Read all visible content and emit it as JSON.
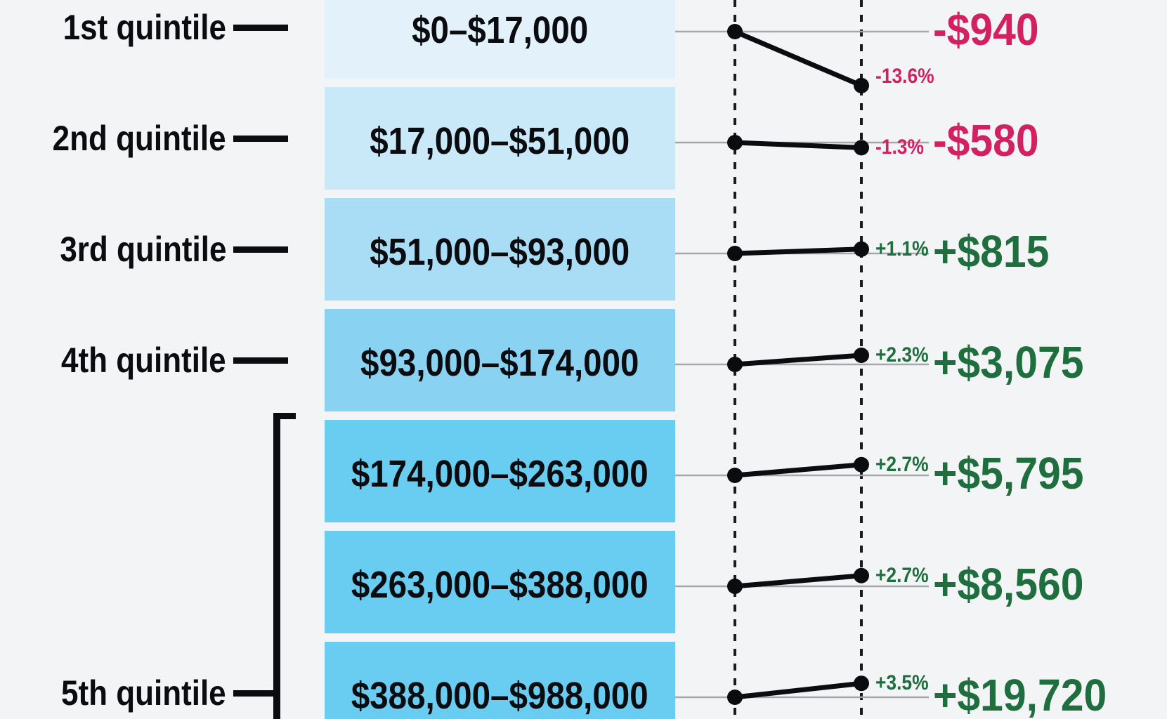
{
  "chart_data": {
    "type": "slope",
    "description_visible_text_only": true,
    "rows": [
      {
        "quintile": "1st quintile",
        "income_range": "$0–$17,000",
        "pct_change": -13.6,
        "pct_change_label": "-13.6%",
        "dollar_change": -940,
        "dollar_change_label": "-$940",
        "sentiment": "negative",
        "box_color": "#e3f1fb"
      },
      {
        "quintile": "2nd quintile",
        "income_range": "$17,000–$51,000",
        "pct_change": -1.3,
        "pct_change_label": "-1.3%",
        "dollar_change": -580,
        "dollar_change_label": "-$580",
        "sentiment": "negative",
        "box_color": "#c9e8f8"
      },
      {
        "quintile": "3rd quintile",
        "income_range": "$51,000–$93,000",
        "pct_change": 1.1,
        "pct_change_label": "+1.1%",
        "dollar_change": 815,
        "dollar_change_label": "+$815",
        "sentiment": "positive",
        "box_color": "#a8ddf5"
      },
      {
        "quintile": "4th quintile",
        "income_range": "$93,000–$174,000",
        "pct_change": 2.3,
        "pct_change_label": "+2.3%",
        "dollar_change": 3075,
        "dollar_change_label": "+$3,075",
        "sentiment": "positive",
        "box_color": "#8ad2f2"
      },
      {
        "quintile": "",
        "income_range": "$174,000–$263,000",
        "pct_change": 2.7,
        "pct_change_label": "+2.7%",
        "dollar_change": 5795,
        "dollar_change_label": "+$5,795",
        "sentiment": "positive",
        "box_color": "#68cdf1"
      },
      {
        "quintile": "",
        "income_range": "$263,000–$388,000",
        "pct_change": 2.7,
        "pct_change_label": "+2.7%",
        "dollar_change": 8560,
        "dollar_change_label": "+$8,560",
        "sentiment": "positive",
        "box_color": "#68cdf1"
      },
      {
        "quintile": "5th quintile",
        "income_range": "$388,000–$988,000",
        "pct_change": 3.5,
        "pct_change_label": "+3.5%",
        "dollar_change": 19720,
        "dollar_change_label": "+$19,720",
        "sentiment": "positive",
        "box_color": "#68cdf1",
        "bracketed_group": true
      }
    ],
    "group_bracket": {
      "row_indices_covered": [
        4,
        5,
        6
      ]
    },
    "axes": {
      "vertical_dotted_reference_lines": 2,
      "tick_labels_visible": false
    },
    "legend": {
      "visible": false
    }
  },
  "colors": {
    "background": "#f3f4f6",
    "negative": "#d32060",
    "positive": "#1e6e3e",
    "text_black": "#0b0c0f",
    "gray_connector_line": "#a7a7aa",
    "dot": "#0b0c0f",
    "dotted_axis": "#1a1b1e",
    "bracket": "#0b0c0f"
  }
}
